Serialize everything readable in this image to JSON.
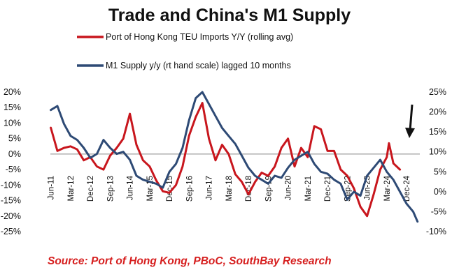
{
  "chart_data": {
    "type": "line",
    "title": "Trade and China's  M1 Supply",
    "source": "Source: Port of Hong Kong, PBoC, SouthBay Research",
    "colors": {
      "teu": "#c8161d",
      "m1": "#2e4a75",
      "text": "#111111",
      "arrow": "#111111"
    },
    "legend_position": "top",
    "grid": false,
    "annotation": "downward-arrow",
    "left_axis": {
      "ylim": [
        -25,
        20
      ],
      "tick_labels": [
        "20%",
        "15%",
        "10%",
        "5%",
        "0%",
        "-5%",
        "-10%",
        "-15%",
        "-20%",
        "-25%"
      ]
    },
    "right_axis": {
      "ylim": [
        -10,
        25
      ],
      "tick_labels": [
        "25%",
        "20%",
        "15%",
        "10%",
        "5%",
        "0%",
        "-5%",
        "-10%"
      ]
    },
    "x_tick_labels": [
      "Jun-11",
      "Mar-12",
      "Dec-12",
      "Sep-13",
      "Jun-14",
      "Mar-15",
      "Dec-15",
      "Sep-16",
      "Jun-17",
      "Mar-18",
      "Dec-18",
      "Sep-19",
      "Jun-20",
      "Mar-21",
      "Dec-21",
      "Sep-22",
      "Jun-23",
      "Mar-24",
      "Dec-24"
    ],
    "series": [
      {
        "name": "Port of Hong Kong TEU Imports Y/Y (rolling avg)",
        "axis": "left",
        "points": [
          [
            "2011-06",
            8.5
          ],
          [
            "2011-09",
            1
          ],
          [
            "2011-12",
            2
          ],
          [
            "2012-03",
            2.5
          ],
          [
            "2012-06",
            1.5
          ],
          [
            "2012-09",
            -2
          ],
          [
            "2012-12",
            -1
          ],
          [
            "2013-03",
            -4
          ],
          [
            "2013-06",
            -5
          ],
          [
            "2013-09",
            -0.5
          ],
          [
            "2013-12",
            2
          ],
          [
            "2014-03",
            5
          ],
          [
            "2014-06",
            13
          ],
          [
            "2014-09",
            3
          ],
          [
            "2014-12",
            -2
          ],
          [
            "2015-03",
            -4
          ],
          [
            "2015-06",
            -8.5
          ],
          [
            "2015-09",
            -12
          ],
          [
            "2015-12",
            -12.5
          ],
          [
            "2016-03",
            -10
          ],
          [
            "2016-06",
            -4
          ],
          [
            "2016-09",
            6
          ],
          [
            "2016-12",
            12
          ],
          [
            "2017-03",
            16.5
          ],
          [
            "2017-06",
            5
          ],
          [
            "2017-09",
            -2
          ],
          [
            "2017-12",
            3
          ],
          [
            "2018-03",
            0
          ],
          [
            "2018-06",
            -6.5
          ],
          [
            "2018-09",
            -9
          ],
          [
            "2018-12",
            -13
          ],
          [
            "2019-03",
            -9
          ],
          [
            "2019-06",
            -6
          ],
          [
            "2019-09",
            -7
          ],
          [
            "2019-12",
            -4
          ],
          [
            "2020-03",
            2
          ],
          [
            "2020-06",
            5
          ],
          [
            "2020-09",
            -4
          ],
          [
            "2020-12",
            2
          ],
          [
            "2021-03",
            -1
          ],
          [
            "2021-06",
            9
          ],
          [
            "2021-09",
            8
          ],
          [
            "2021-12",
            1
          ],
          [
            "2022-03",
            1
          ],
          [
            "2022-06",
            -5
          ],
          [
            "2022-09",
            -7
          ],
          [
            "2022-12",
            -11
          ],
          [
            "2023-03",
            -17
          ],
          [
            "2023-06",
            -20
          ],
          [
            "2023-09",
            -13
          ],
          [
            "2023-12",
            -5
          ],
          [
            "2024-03",
            -1
          ],
          [
            "2024-04",
            3.5
          ],
          [
            "2024-06",
            -3
          ],
          [
            "2024-09",
            -5
          ]
        ]
      },
      {
        "name": "M1 Supply y/y (rt hand scale) lagged 10 months",
        "axis": "right",
        "points": [
          [
            "2011-06",
            20.5
          ],
          [
            "2011-09",
            21.5
          ],
          [
            "2011-12",
            17
          ],
          [
            "2012-03",
            14
          ],
          [
            "2012-06",
            13
          ],
          [
            "2012-09",
            11
          ],
          [
            "2012-12",
            8.5
          ],
          [
            "2013-03",
            9.5
          ],
          [
            "2013-06",
            13
          ],
          [
            "2013-09",
            11
          ],
          [
            "2013-12",
            9.5
          ],
          [
            "2014-03",
            10
          ],
          [
            "2014-06",
            8
          ],
          [
            "2014-09",
            4
          ],
          [
            "2014-12",
            3
          ],
          [
            "2015-03",
            2.5
          ],
          [
            "2015-06",
            2
          ],
          [
            "2015-09",
            1
          ],
          [
            "2015-12",
            5
          ],
          [
            "2016-03",
            7
          ],
          [
            "2016-06",
            11
          ],
          [
            "2016-09",
            18
          ],
          [
            "2016-12",
            23.5
          ],
          [
            "2017-03",
            25
          ],
          [
            "2017-06",
            22
          ],
          [
            "2017-09",
            19
          ],
          [
            "2017-12",
            16
          ],
          [
            "2018-03",
            14
          ],
          [
            "2018-06",
            12
          ],
          [
            "2018-09",
            9
          ],
          [
            "2018-12",
            6
          ],
          [
            "2019-03",
            4
          ],
          [
            "2019-06",
            3
          ],
          [
            "2019-09",
            2
          ],
          [
            "2019-12",
            4
          ],
          [
            "2020-03",
            3.5
          ],
          [
            "2020-06",
            6
          ],
          [
            "2020-09",
            8
          ],
          [
            "2020-12",
            9
          ],
          [
            "2021-03",
            10
          ],
          [
            "2021-06",
            7
          ],
          [
            "2021-09",
            5
          ],
          [
            "2021-12",
            4.5
          ],
          [
            "2022-03",
            3
          ],
          [
            "2022-06",
            2
          ],
          [
            "2022-09",
            -2
          ],
          [
            "2022-12",
            0
          ],
          [
            "2023-03",
            -1
          ],
          [
            "2023-06",
            4
          ],
          [
            "2023-09",
            6
          ],
          [
            "2023-12",
            8
          ],
          [
            "2024-03",
            5
          ],
          [
            "2024-06",
            3
          ],
          [
            "2024-09",
            0
          ],
          [
            "2024-12",
            -3
          ],
          [
            "2025-03",
            -5
          ],
          [
            "2025-05",
            -7.5
          ]
        ]
      }
    ]
  }
}
